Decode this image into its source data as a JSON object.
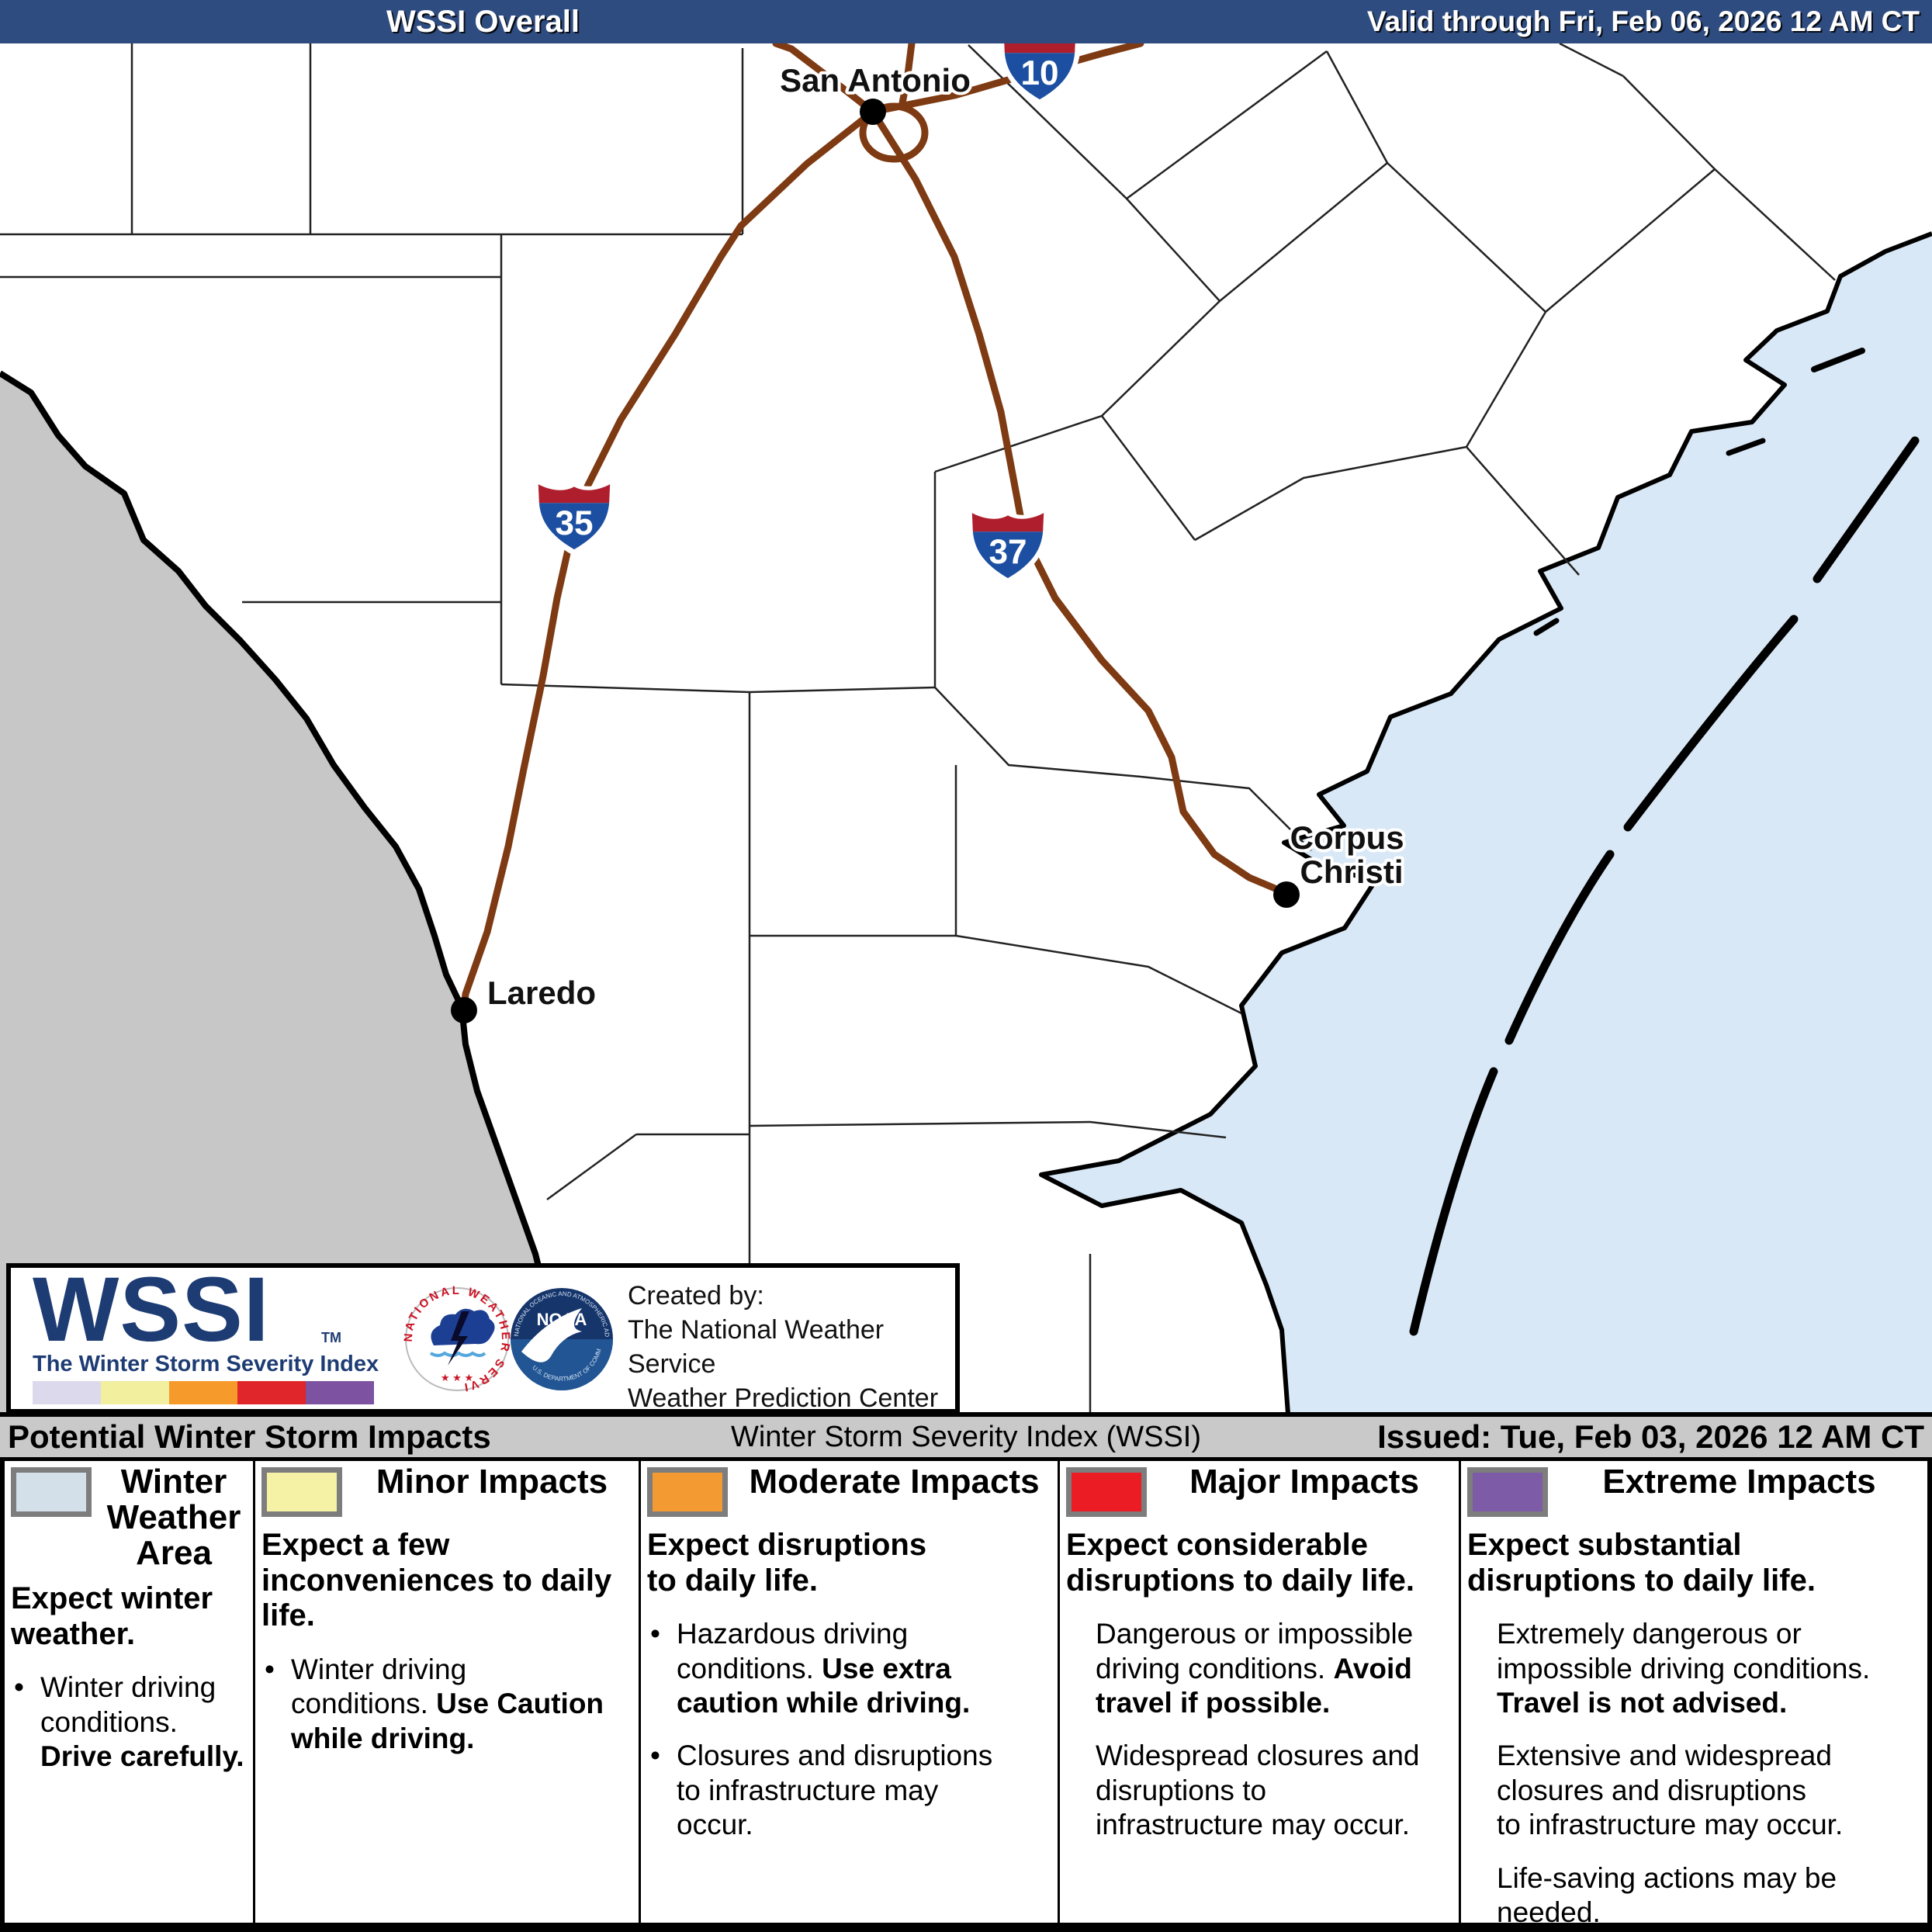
{
  "header": {
    "title": "WSSI Overall",
    "valid": "Valid through Fri, Feb 06, 2026 12 AM CT",
    "bg": "#2E4C80"
  },
  "map": {
    "cities": [
      {
        "name": "San Antonio"
      },
      {
        "name": "Laredo"
      },
      {
        "name": "Corpus Christi",
        "lines": [
          "Corpus",
          "Christi"
        ]
      }
    ],
    "highways": [
      {
        "number": "35"
      },
      {
        "number": "37"
      },
      {
        "number": "10"
      }
    ],
    "colors": {
      "water": "#D9E8F6",
      "mexico": "#C7C7C7",
      "road": "#7E3A12"
    }
  },
  "logo_box": {
    "wssi": "WSSI",
    "tm": "TM",
    "tagline": "The Winter Storm Severity Index",
    "created": [
      "Created by:",
      "The National Weather Service",
      "Weather Prediction Center"
    ],
    "nws_ring_text": "NATIONAL WEATHER SERVICE",
    "nws_stars": "★ ★ ★",
    "noaa": "NOAA",
    "noaa_ring_top": "NATIONAL OCEANIC AND ATMOSPHERIC ADMINISTRATION",
    "noaa_ring_bottom": "U.S. DEPARTMENT OF COMMERCE",
    "scale_colors": [
      "#DDD9EC",
      "#F2EF9F",
      "#F59A2B",
      "#E0262A",
      "#7C52A1"
    ]
  },
  "impacts_bar": {
    "left": "Potential Winter Storm Impacts",
    "center": "Winter Storm Severity Index (WSSI)",
    "right": "Issued: Tue, Feb 03, 2026 12 AM CT"
  },
  "legend": {
    "columns": [
      {
        "swatch": "#D3E0EA",
        "title": "Winter\nWeather\nArea",
        "intro": "Expect winter\nweather.",
        "items": [
          {
            "bullet": true,
            "segments": [
              {
                "t": "Winter driving\nconditions.\n",
                "b": false
              },
              {
                "t": "Drive carefully.",
                "b": true
              }
            ]
          }
        ]
      },
      {
        "swatch": "#F5F2A5",
        "title": "Minor Impacts",
        "intro": "Expect a few\ninconveniences to daily\nlife.",
        "items": [
          {
            "bullet": true,
            "segments": [
              {
                "t": "Winter driving\nconditions. ",
                "b": false
              },
              {
                "t": "Use Caution\nwhile driving.",
                "b": true
              }
            ]
          }
        ]
      },
      {
        "swatch": "#F49A33",
        "title": "Moderate Impacts",
        "intro": "Expect disruptions\nto daily life.",
        "items": [
          {
            "bullet": true,
            "segments": [
              {
                "t": "Hazardous driving\nconditions. ",
                "b": false
              },
              {
                "t": "Use extra\ncaution while driving.",
                "b": true
              }
            ]
          },
          {
            "bullet": true,
            "segments": [
              {
                "t": "Closures and disruptions\nto infrastructure may\noccur.",
                "b": false
              }
            ]
          }
        ]
      },
      {
        "swatch": "#EC1C24",
        "title": "Major Impacts",
        "intro": "Expect considerable\ndisruptions to daily life.",
        "items": [
          {
            "bullet": false,
            "segments": [
              {
                "t": "Dangerous or impossible\ndriving conditions. ",
                "b": false
              },
              {
                "t": "Avoid\ntravel if possible.",
                "b": true
              }
            ]
          },
          {
            "bullet": false,
            "segments": [
              {
                "t": "Widespread closures and\ndisruptions to\ninfrastructure may occur.",
                "b": false
              }
            ]
          }
        ]
      },
      {
        "swatch": "#7D5BA6",
        "title": "Extreme Impacts",
        "intro": "Expect substantial\ndisruptions to daily life.",
        "items": [
          {
            "bullet": false,
            "segments": [
              {
                "t": "Extremely dangerous or\nimpossible driving conditions.\n",
                "b": false
              },
              {
                "t": "Travel is not advised.",
                "b": true
              }
            ]
          },
          {
            "bullet": false,
            "segments": [
              {
                "t": "Extensive and widespread\nclosures and disruptions\nto infrastructure may occur.",
                "b": false
              }
            ]
          },
          {
            "bullet": false,
            "segments": [
              {
                "t": "Life-saving actions may be\nneeded.",
                "b": false
              }
            ]
          }
        ]
      }
    ]
  }
}
